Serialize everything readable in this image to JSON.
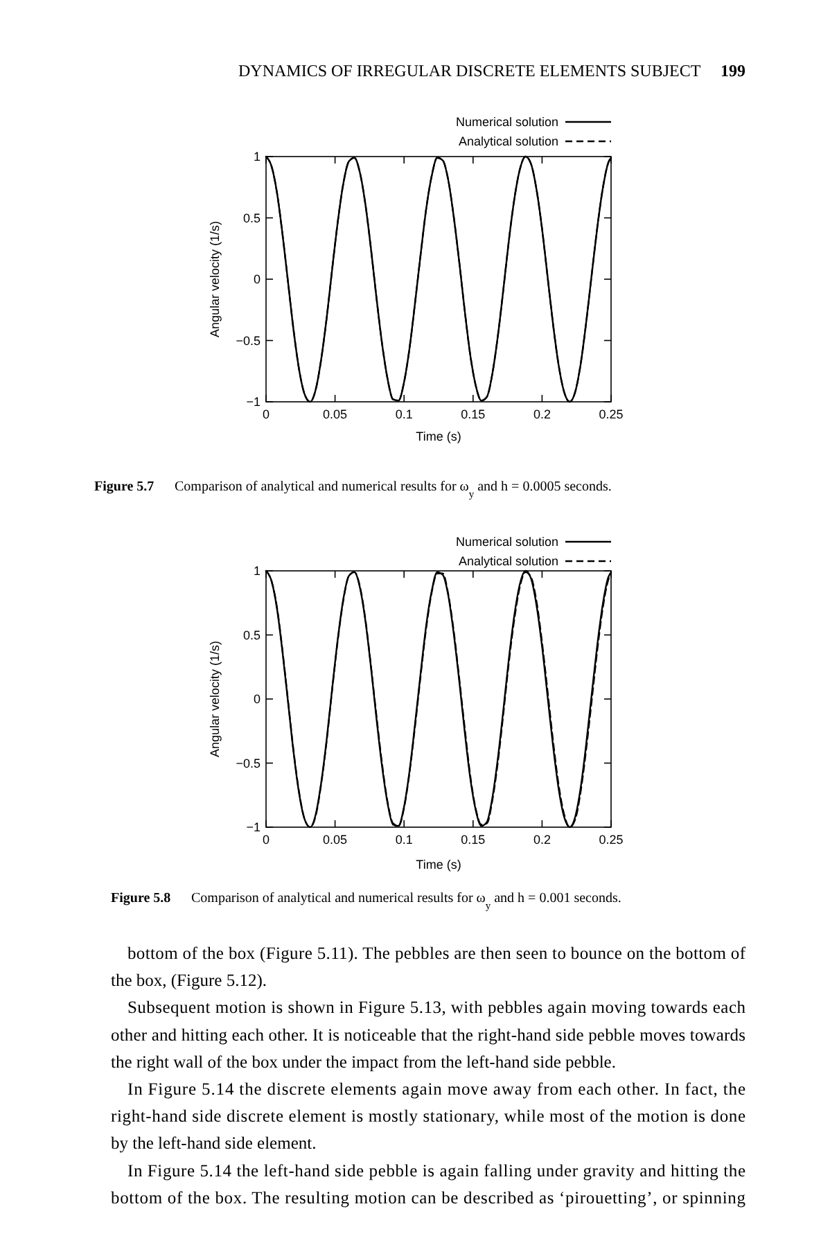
{
  "chart_data": [
    {
      "type": "line",
      "xlabel": "Time (s)",
      "ylabel": "Angular velocity (1/s)",
      "xlim": [
        0,
        0.25
      ],
      "ylim": [
        -1,
        1
      ],
      "xticks": [
        0,
        0.05,
        0.1,
        0.15,
        0.2,
        0.25
      ],
      "yticks": [
        -1,
        -0.5,
        0,
        0.5,
        1
      ],
      "grid": false,
      "legend": "top right",
      "x": [
        0,
        0.004,
        0.008,
        0.012,
        0.016,
        0.02,
        0.024,
        0.028,
        0.032,
        0.036,
        0.04,
        0.044,
        0.048,
        0.052,
        0.056,
        0.06,
        0.064,
        0.068,
        0.072,
        0.076,
        0.08,
        0.084,
        0.088,
        0.092,
        0.096,
        0.1,
        0.104,
        0.108,
        0.112,
        0.116,
        0.12,
        0.124,
        0.128,
        0.132,
        0.136,
        0.14,
        0.144,
        0.148,
        0.152,
        0.156,
        0.16,
        0.164,
        0.168,
        0.172,
        0.176,
        0.18,
        0.184,
        0.188,
        0.192,
        0.196,
        0.2,
        0.204,
        0.208,
        0.212,
        0.216,
        0.22,
        0.224,
        0.228,
        0.232,
        0.236,
        0.24,
        0.244,
        0.248,
        0.25
      ],
      "series": [
        {
          "name": "Numerical solution",
          "color": "#000000",
          "line_style": "solid",
          "values": [
            1,
            0.92,
            0.7,
            0.36,
            -0.03,
            -0.42,
            -0.74,
            -0.94,
            -1,
            -0.9,
            -0.65,
            -0.31,
            0.09,
            0.47,
            0.78,
            0.96,
            0.99,
            0.87,
            0.61,
            0.25,
            -0.15,
            -0.52,
            -0.81,
            -0.98,
            -0.99,
            -0.84,
            -0.56,
            -0.19,
            0.2,
            0.57,
            0.84,
            0.99,
            0.97,
            0.81,
            0.51,
            0.14,
            -0.26,
            -0.62,
            -0.87,
            -0.99,
            -0.96,
            -0.77,
            -0.46,
            -0.08,
            0.32,
            0.66,
            0.9,
            1,
            0.94,
            0.73,
            0.41,
            0.02,
            -0.37,
            -0.7,
            -0.92,
            -1,
            -0.92,
            -0.69,
            -0.35,
            0.04,
            0.42,
            0.74,
            0.95,
            0.99
          ]
        },
        {
          "name": "Analytical solution",
          "color": "#000000",
          "line_style": "dashed",
          "values": [
            1,
            0.92,
            0.7,
            0.36,
            -0.03,
            -0.42,
            -0.74,
            -0.94,
            -1,
            -0.9,
            -0.65,
            -0.31,
            0.09,
            0.47,
            0.78,
            0.96,
            0.99,
            0.87,
            0.61,
            0.25,
            -0.15,
            -0.52,
            -0.81,
            -0.98,
            -0.99,
            -0.84,
            -0.56,
            -0.19,
            0.2,
            0.57,
            0.84,
            0.99,
            0.97,
            0.81,
            0.51,
            0.14,
            -0.26,
            -0.62,
            -0.87,
            -0.99,
            -0.96,
            -0.77,
            -0.46,
            -0.08,
            0.32,
            0.66,
            0.9,
            1,
            0.94,
            0.73,
            0.41,
            0.02,
            -0.37,
            -0.7,
            -0.92,
            -1,
            -0.92,
            -0.69,
            -0.35,
            0.04,
            0.42,
            0.74,
            0.95,
            0.99
          ]
        }
      ],
      "annotations": [
        "DYNAMICS OF IRREGULAR DISCRETE ELEMENTS SUBJECT",
        "199",
        "Figure 5.7",
        "Comparison of analytical and numerical results for ω$_{y}$ and h = 0.0005  seconds."
      ]
    },
    {
      "type": "line",
      "xlabel": "Time (s)",
      "ylabel": "Angular velocity (1/s)",
      "xlim": [
        0,
        0.25
      ],
      "ylim": [
        -1,
        1
      ],
      "xticks": [
        0,
        0.05,
        0.1,
        0.15,
        0.2,
        0.25
      ],
      "yticks": [
        -1,
        -0.5,
        0,
        0.5,
        1
      ],
      "grid": false,
      "legend": "top right",
      "x": [
        0,
        0.004,
        0.008,
        0.012,
        0.016,
        0.02,
        0.024,
        0.028,
        0.032,
        0.036,
        0.04,
        0.044,
        0.048,
        0.052,
        0.056,
        0.06,
        0.064,
        0.068,
        0.072,
        0.076,
        0.08,
        0.084,
        0.088,
        0.092,
        0.096,
        0.1,
        0.104,
        0.108,
        0.112,
        0.116,
        0.12,
        0.124,
        0.128,
        0.132,
        0.136,
        0.14,
        0.144,
        0.148,
        0.152,
        0.156,
        0.16,
        0.164,
        0.168,
        0.172,
        0.176,
        0.18,
        0.184,
        0.188,
        0.192,
        0.196,
        0.2,
        0.204,
        0.208,
        0.212,
        0.216,
        0.22,
        0.224,
        0.228,
        0.232,
        0.236,
        0.24,
        0.244,
        0.248,
        0.25
      ],
      "series": [
        {
          "name": "Numerical solution",
          "color": "#000000",
          "line_style": "solid",
          "values": [
            1,
            0.92,
            0.7,
            0.36,
            -0.03,
            -0.42,
            -0.74,
            -0.94,
            -1,
            -0.9,
            -0.65,
            -0.31,
            0.09,
            0.47,
            0.78,
            0.96,
            0.99,
            0.87,
            0.61,
            0.25,
            -0.15,
            -0.52,
            -0.81,
            -0.98,
            -0.99,
            -0.84,
            -0.56,
            -0.19,
            0.2,
            0.57,
            0.84,
            0.99,
            0.97,
            0.81,
            0.51,
            0.14,
            -0.26,
            -0.62,
            -0.87,
            -0.99,
            -0.96,
            -0.77,
            -0.46,
            -0.08,
            0.32,
            0.66,
            0.9,
            1,
            0.94,
            0.73,
            0.41,
            0.02,
            -0.37,
            -0.7,
            -0.92,
            -1,
            -0.92,
            -0.69,
            -0.35,
            0.04,
            0.42,
            0.74,
            0.95,
            0.99
          ]
        },
        {
          "name": "Analytical solution",
          "color": "#000000",
          "line_style": "dashed",
          "values": [
            1,
            0.92,
            0.71,
            0.37,
            -0.02,
            -0.41,
            -0.73,
            -0.94,
            -1,
            -0.91,
            -0.66,
            -0.32,
            0.08,
            0.46,
            0.77,
            0.96,
            0.99,
            0.88,
            0.62,
            0.26,
            -0.13,
            -0.5,
            -0.8,
            -0.97,
            -0.99,
            -0.85,
            -0.57,
            -0.21,
            0.18,
            0.55,
            0.83,
            0.98,
            0.98,
            0.82,
            0.53,
            0.16,
            -0.23,
            -0.6,
            -0.86,
            -0.98,
            -0.97,
            -0.79,
            -0.49,
            -0.11,
            0.29,
            0.63,
            0.88,
            0.99,
            0.95,
            0.76,
            0.44,
            0.06,
            -0.33,
            -0.67,
            -0.9,
            -1,
            -0.94,
            -0.72,
            -0.39,
            -0.01,
            0.38,
            0.71,
            0.93,
            0.98
          ]
        }
      ],
      "annotations": [
        "Figure 5.8",
        "Comparison of analytical and numerical results for ω$_{y}$ and h = 0.001  seconds.",
        "bottom of the box (Figure 5.11). The pebbles are then seen to bounce on the bottom of",
        "the box, (Figure 5.12).",
        "Subsequent motion is shown in Figure 5.13, with pebbles again moving towards each",
        "other and hitting each other. It is noticeable that the right-hand side pebble moves towards",
        "the right wall of the box under the impact from the left-hand side pebble.",
        "In Figure 5.14 the discrete elements again move away from each other. In fact, the",
        "right-hand side discrete element is mostly stationary, while most of the motion is done",
        "by the left-hand side element.",
        "In Figure 5.14 the left-hand side pebble is again falling under gravity and hitting the",
        "bottom of the box. The resulting motion can be described as ‘pirouetting’, or spinning"
      ]
    }
  ]
}
